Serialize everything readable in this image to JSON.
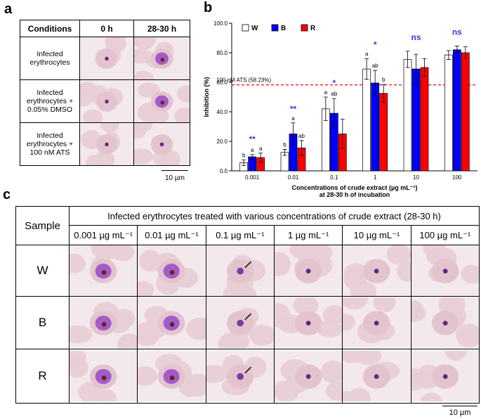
{
  "panel_labels": [
    "a",
    "b",
    "c"
  ],
  "panel_a": {
    "headers": [
      "Conditions",
      "0 h",
      "28-30 h"
    ],
    "rows": [
      "Infected erythrocytes",
      "Infected erythrocytes + 0.05% DMSO",
      "Infected erythrocytes + 100 nM ATS"
    ],
    "scale": "10 µm"
  },
  "chart_data": {
    "type": "bar",
    "y_label": "Inhibition (%)",
    "x_label": [
      "Concentrations of crude extract (µg mL⁻¹)",
      "at 28-30 h of incubation"
    ],
    "categories": [
      "0.001",
      "0.01",
      "0.1",
      "1",
      "10",
      "100"
    ],
    "series": [
      {
        "name": "W",
        "color": "#ffffff",
        "values": [
          5.5,
          12.5,
          42,
          69,
          75.5,
          78.5
        ],
        "errors": [
          2,
          2,
          8,
          7,
          5.5,
          3
        ],
        "letters": [
          "b",
          "b",
          "a",
          "a",
          null,
          null
        ]
      },
      {
        "name": "B",
        "color": "#0000ff",
        "values": [
          9.5,
          25,
          39,
          59.5,
          69,
          82
        ],
        "errors": [
          1.5,
          7.5,
          10,
          8.5,
          10,
          2.5
        ],
        "letters": [
          "a",
          "a",
          "ab",
          "ab",
          null,
          null
        ]
      },
      {
        "name": "R",
        "color": "#ff0000",
        "values": [
          9,
          15.5,
          25,
          52.5,
          70,
          80
        ],
        "errors": [
          3,
          5,
          10,
          6,
          6,
          4
        ],
        "letters": [
          "a",
          "ab",
          null,
          "b",
          null,
          null
        ]
      }
    ],
    "significance": [
      "**",
      "**",
      "*",
      "*",
      "ns",
      "ns"
    ],
    "significance_color": "#2f3fd6",
    "reference": {
      "value": 58.23,
      "label": "100 nM ATS (58.23%)",
      "color": "#ff0000"
    },
    "ylim": [
      0,
      100
    ],
    "yticks": [
      {
        "value": 0,
        "label": "0.0"
      },
      {
        "value": 20,
        "label": "20.0"
      },
      {
        "value": 40,
        "label": "40.0"
      },
      {
        "value": 60,
        "label": "60.0"
      },
      {
        "value": 80,
        "label": "80.0"
      },
      {
        "value": 100,
        "label": "100.0"
      }
    ],
    "legend": "top-left"
  },
  "panel_c": {
    "header": "Sample",
    "title": "Infected erythrocytes treated with various concentrations of crude extract (28-30 h)",
    "columns": [
      "0.001 µg mL⁻¹",
      "0.01 µg mL⁻¹",
      "0.1 µg mL⁻¹",
      "1 µg mL⁻¹",
      "10 µg mL⁻¹",
      "100 µg mL⁻¹"
    ],
    "rows": [
      "W",
      "B",
      "R"
    ],
    "scale": "10 µm"
  }
}
